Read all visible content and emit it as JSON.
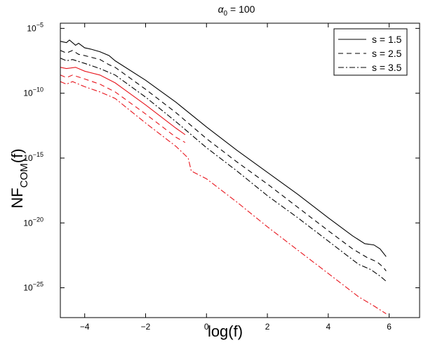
{
  "chart_data": {
    "type": "line",
    "title": "α",
    "title_sub": "0",
    "title_suffix": " = 100",
    "xlabel": "log(f)",
    "ylabel": "NF",
    "ylabel_sub": "COM",
    "ylabel_suffix": "(f)",
    "xlim": [
      -4.8,
      7
    ],
    "ylim_log10": [
      -27.3,
      -4.6
    ],
    "y_scale": "log",
    "grid": false,
    "legend_position": "top-right",
    "x_ticks": [
      -4,
      -2,
      0,
      2,
      4,
      6
    ],
    "x_tick_labels": [
      "−4",
      "−2",
      "0",
      "2",
      "4",
      "6"
    ],
    "y_ticks_exp": [
      -5,
      -10,
      -15,
      -20,
      -25
    ],
    "y_tick_base": "10",
    "y_tick_exponents": [
      "−5",
      "−10",
      "−15",
      "−20",
      "−25"
    ],
    "colors": {
      "black": "#000000",
      "red": "#e8141c"
    },
    "series": [
      {
        "name": "s = 1.5",
        "dash": "solid",
        "color": "black",
        "points": [
          [
            -4.8,
            -6.0
          ],
          [
            -4.6,
            -6.1
          ],
          [
            -4.5,
            -5.9
          ],
          [
            -4.3,
            -6.3
          ],
          [
            -4.2,
            -6.15
          ],
          [
            -4.0,
            -6.5
          ],
          [
            -3.8,
            -6.6
          ],
          [
            -3.5,
            -6.8
          ],
          [
            -3.2,
            -7.1
          ],
          [
            -3.0,
            -7.5
          ],
          [
            -2.0,
            -9.0
          ],
          [
            -1.0,
            -10.7
          ],
          [
            0,
            -12.6
          ],
          [
            1,
            -14.4
          ],
          [
            2,
            -16.1
          ],
          [
            3,
            -17.8
          ],
          [
            4,
            -19.6
          ],
          [
            4.8,
            -21.0
          ],
          [
            5.2,
            -21.6
          ],
          [
            5.5,
            -21.7
          ],
          [
            5.7,
            -22.0
          ],
          [
            5.9,
            -22.6
          ]
        ]
      },
      {
        "name": "s = 2.5",
        "dash": "dashed",
        "color": "black",
        "points": [
          [
            -4.8,
            -6.7
          ],
          [
            -4.6,
            -6.9
          ],
          [
            -4.4,
            -6.7
          ],
          [
            -4.2,
            -7.0
          ],
          [
            -4.0,
            -7.1
          ],
          [
            -3.5,
            -7.4
          ],
          [
            -3.2,
            -7.8
          ],
          [
            -3.0,
            -8.0
          ],
          [
            -2.0,
            -9.7
          ],
          [
            -1.0,
            -11.5
          ],
          [
            0,
            -13.5
          ],
          [
            1,
            -15.3
          ],
          [
            2,
            -17.0
          ],
          [
            3,
            -18.8
          ],
          [
            4,
            -20.6
          ],
          [
            4.8,
            -22.0
          ],
          [
            5.3,
            -22.7
          ],
          [
            5.6,
            -23.0
          ],
          [
            5.8,
            -23.4
          ],
          [
            5.9,
            -23.7
          ]
        ]
      },
      {
        "name": "s = 3.5",
        "dash": "dashdot",
        "color": "black",
        "points": [
          [
            -4.8,
            -7.3
          ],
          [
            -4.6,
            -7.5
          ],
          [
            -4.4,
            -7.4
          ],
          [
            -4.0,
            -7.7
          ],
          [
            -3.5,
            -8.1
          ],
          [
            -3.0,
            -8.6
          ],
          [
            -2.0,
            -10.3
          ],
          [
            -1.0,
            -12.2
          ],
          [
            0,
            -14.2
          ],
          [
            1,
            -16.0
          ],
          [
            2,
            -17.9
          ],
          [
            3,
            -19.6
          ],
          [
            4,
            -21.4
          ],
          [
            5,
            -23.2
          ],
          [
            5.4,
            -23.6
          ],
          [
            5.7,
            -24.1
          ],
          [
            5.9,
            -24.5
          ]
        ]
      },
      {
        "name": "",
        "dash": "solid",
        "color": "red",
        "points": [
          [
            -4.8,
            -8.0
          ],
          [
            -4.6,
            -8.1
          ],
          [
            -4.3,
            -8.0
          ],
          [
            -4.0,
            -8.3
          ],
          [
            -3.5,
            -8.6
          ],
          [
            -3.0,
            -9.2
          ],
          [
            -2.0,
            -10.9
          ],
          [
            -1.0,
            -12.7
          ],
          [
            -0.7,
            -13.2
          ]
        ]
      },
      {
        "name": "",
        "dash": "dashed",
        "color": "red",
        "points": [
          [
            -4.8,
            -8.6
          ],
          [
            -4.6,
            -8.8
          ],
          [
            -4.4,
            -8.6
          ],
          [
            -4.0,
            -8.9
          ],
          [
            -3.5,
            -9.3
          ],
          [
            -3.0,
            -9.9
          ],
          [
            -2.0,
            -11.6
          ],
          [
            -1.0,
            -13.4
          ],
          [
            -0.7,
            -13.8
          ]
        ]
      },
      {
        "name": "",
        "dash": "dashdot",
        "color": "red",
        "points": [
          [
            -4.8,
            -9.1
          ],
          [
            -4.6,
            -9.3
          ],
          [
            -4.4,
            -9.1
          ],
          [
            -4.0,
            -9.5
          ],
          [
            -3.5,
            -9.9
          ],
          [
            -3.0,
            -10.4
          ],
          [
            -2.0,
            -12.3
          ],
          [
            -1.0,
            -14.1
          ],
          [
            -0.6,
            -15.0
          ],
          [
            -0.5,
            -16.0
          ],
          [
            0,
            -16.6
          ],
          [
            1,
            -18.4
          ],
          [
            2,
            -20.3
          ],
          [
            3,
            -22.1
          ],
          [
            4,
            -23.9
          ],
          [
            5,
            -25.7
          ],
          [
            5.5,
            -26.4
          ],
          [
            5.9,
            -27.0
          ]
        ]
      }
    ]
  }
}
